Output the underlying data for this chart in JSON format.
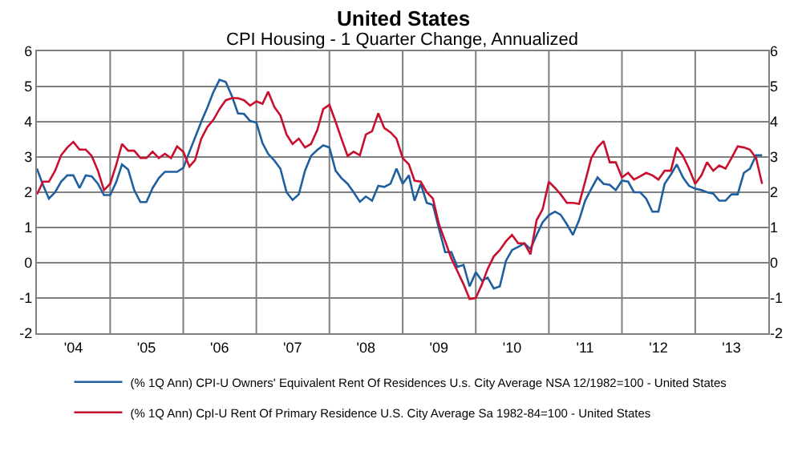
{
  "chart_data": {
    "type": "line",
    "title": "United States",
    "subtitle": "CPI Housing - 1 Quarter Change, Annualized",
    "x": [
      "2004-01",
      "2004-02",
      "2004-03",
      "2004-04",
      "2004-05",
      "2004-06",
      "2004-07",
      "2004-08",
      "2004-09",
      "2004-10",
      "2004-11",
      "2004-12",
      "2005-01",
      "2005-02",
      "2005-03",
      "2005-04",
      "2005-05",
      "2005-06",
      "2005-07",
      "2005-08",
      "2005-09",
      "2005-10",
      "2005-11",
      "2005-12",
      "2006-01",
      "2006-02",
      "2006-03",
      "2006-04",
      "2006-05",
      "2006-06",
      "2006-07",
      "2006-08",
      "2006-09",
      "2006-10",
      "2006-11",
      "2006-12",
      "2007-01",
      "2007-02",
      "2007-03",
      "2007-04",
      "2007-05",
      "2007-06",
      "2007-07",
      "2007-08",
      "2007-09",
      "2007-10",
      "2007-11",
      "2007-12",
      "2008-01",
      "2008-02",
      "2008-03",
      "2008-04",
      "2008-05",
      "2008-06",
      "2008-07",
      "2008-08",
      "2008-09",
      "2008-10",
      "2008-11",
      "2008-12",
      "2009-01",
      "2009-02",
      "2009-03",
      "2009-04",
      "2009-05",
      "2009-06",
      "2009-07",
      "2009-08",
      "2009-09",
      "2009-10",
      "2009-11",
      "2009-12",
      "2010-01",
      "2010-02",
      "2010-03",
      "2010-04",
      "2010-05",
      "2010-06",
      "2010-07",
      "2010-08",
      "2010-09",
      "2010-10",
      "2010-11",
      "2010-12",
      "2011-01",
      "2011-02",
      "2011-03",
      "2011-04",
      "2011-05",
      "2011-06",
      "2011-07",
      "2011-08",
      "2011-09",
      "2011-10",
      "2011-11",
      "2011-12",
      "2012-01",
      "2012-02",
      "2012-03",
      "2012-04",
      "2012-05",
      "2012-06",
      "2012-07",
      "2012-08",
      "2012-09",
      "2012-10",
      "2012-11",
      "2012-12",
      "2013-01",
      "2013-02",
      "2013-03",
      "2013-04",
      "2013-05",
      "2013-06",
      "2013-07",
      "2013-08",
      "2013-09",
      "2013-10",
      "2013-11",
      "2013-12"
    ],
    "series": [
      {
        "name": "(% 1Q Ann) CPI-U Owners' Equivalent Rent Of Residences U.s. City Average NSA 12/1982=100 - United States",
        "color": "#1f5f9f",
        "values": [
          2.67,
          2.2,
          1.82,
          2.0,
          2.3,
          2.48,
          2.48,
          2.12,
          2.48,
          2.45,
          2.24,
          1.92,
          1.92,
          2.3,
          2.79,
          2.64,
          2.06,
          1.72,
          1.72,
          2.12,
          2.4,
          2.58,
          2.58,
          2.58,
          2.69,
          3.15,
          3.55,
          4.0,
          4.4,
          4.85,
          5.19,
          5.13,
          4.73,
          4.24,
          4.22,
          4.02,
          3.98,
          3.39,
          3.09,
          2.9,
          2.67,
          2.0,
          1.78,
          1.94,
          2.61,
          3.03,
          3.2,
          3.33,
          3.27,
          2.61,
          2.4,
          2.24,
          2.0,
          1.73,
          1.88,
          1.76,
          2.18,
          2.15,
          2.24,
          2.67,
          2.24,
          2.48,
          1.76,
          2.24,
          1.7,
          1.64,
          0.97,
          0.3,
          0.3,
          -0.12,
          -0.06,
          -0.67,
          -0.27,
          -0.51,
          -0.42,
          -0.73,
          -0.67,
          0.06,
          0.36,
          0.45,
          0.55,
          0.39,
          0.79,
          1.15,
          1.35,
          1.45,
          1.36,
          1.09,
          0.79,
          1.21,
          1.76,
          2.1,
          2.42,
          2.24,
          2.21,
          2.06,
          2.33,
          2.3,
          2.0,
          2.0,
          1.82,
          1.45,
          1.45,
          2.24,
          2.5,
          2.79,
          2.42,
          2.18,
          2.1,
          2.06,
          2.0,
          1.96,
          1.76,
          1.76,
          1.94,
          1.94,
          2.55,
          2.67,
          3.05,
          3.05
        ]
      },
      {
        "name": "(% 1Q Ann) CpI-U Rent Of Primary Residence U.S. City Average Sa 1982-84=100 - United States",
        "color": "#c8102e",
        "values": [
          1.94,
          2.3,
          2.3,
          2.61,
          3.05,
          3.27,
          3.43,
          3.21,
          3.21,
          3.03,
          2.61,
          2.06,
          2.24,
          2.79,
          3.37,
          3.18,
          3.18,
          2.97,
          2.97,
          3.15,
          2.97,
          3.09,
          2.97,
          3.3,
          3.15,
          2.73,
          2.91,
          3.52,
          3.85,
          4.06,
          4.36,
          4.61,
          4.67,
          4.67,
          4.61,
          4.46,
          4.58,
          4.51,
          4.85,
          4.42,
          4.18,
          3.64,
          3.37,
          3.52,
          3.27,
          3.37,
          3.76,
          4.36,
          4.48,
          4.0,
          3.52,
          3.03,
          3.15,
          3.05,
          3.64,
          3.73,
          4.24,
          3.82,
          3.7,
          3.52,
          2.97,
          2.79,
          2.33,
          2.3,
          2.0,
          1.82,
          1.09,
          0.61,
          0.12,
          -0.24,
          -0.61,
          -1.03,
          -1.0,
          -0.61,
          -0.18,
          0.18,
          0.36,
          0.61,
          0.79,
          0.55,
          0.55,
          0.24,
          1.21,
          1.52,
          2.3,
          2.12,
          1.94,
          1.7,
          1.7,
          1.67,
          2.3,
          2.97,
          3.27,
          3.45,
          2.85,
          2.85,
          2.42,
          2.55,
          2.36,
          2.45,
          2.55,
          2.48,
          2.36,
          2.61,
          2.61,
          3.27,
          3.03,
          2.67,
          2.24,
          2.48,
          2.85,
          2.61,
          2.76,
          2.67,
          2.97,
          3.3,
          3.27,
          3.21,
          2.97,
          2.24
        ]
      }
    ],
    "xlim": [
      "2004-01-01",
      "2014-01-01"
    ],
    "xticks": [
      {
        "value": "2004-07-01",
        "label": "'04"
      },
      {
        "value": "2005-07-01",
        "label": "'05"
      },
      {
        "value": "2006-07-01",
        "label": "'06"
      },
      {
        "value": "2007-07-01",
        "label": "'07"
      },
      {
        "value": "2008-07-01",
        "label": "'08"
      },
      {
        "value": "2009-07-01",
        "label": "'09"
      },
      {
        "value": "2010-07-01",
        "label": "'10"
      },
      {
        "value": "2011-07-01",
        "label": "'11"
      },
      {
        "value": "2012-07-01",
        "label": "'12"
      },
      {
        "value": "2013-07-01",
        "label": "'13"
      },
      {
        "value": "2005-01-01",
        "label": null
      },
      {
        "value": "2006-01-01",
        "label": null
      },
      {
        "value": "2007-01-01",
        "label": null
      },
      {
        "value": "2008-01-01",
        "label": null
      },
      {
        "value": "2009-01-01",
        "label": null
      },
      {
        "value": "2010-01-01",
        "label": null
      },
      {
        "value": "2011-01-01",
        "label": null
      },
      {
        "value": "2012-01-01",
        "label": null
      },
      {
        "value": "2013-01-01",
        "label": null
      }
    ],
    "ylim": [
      -2,
      6
    ],
    "yticks": [
      -2,
      -1,
      0,
      1,
      2,
      3,
      4,
      5,
      6
    ],
    "y2lim": [
      -2,
      6
    ],
    "y2ticks": [
      -2,
      -1,
      0,
      1,
      2,
      3,
      4,
      5,
      6
    ],
    "grid": true,
    "legend": "bottom",
    "marker": "none",
    "line_style": "solid"
  }
}
